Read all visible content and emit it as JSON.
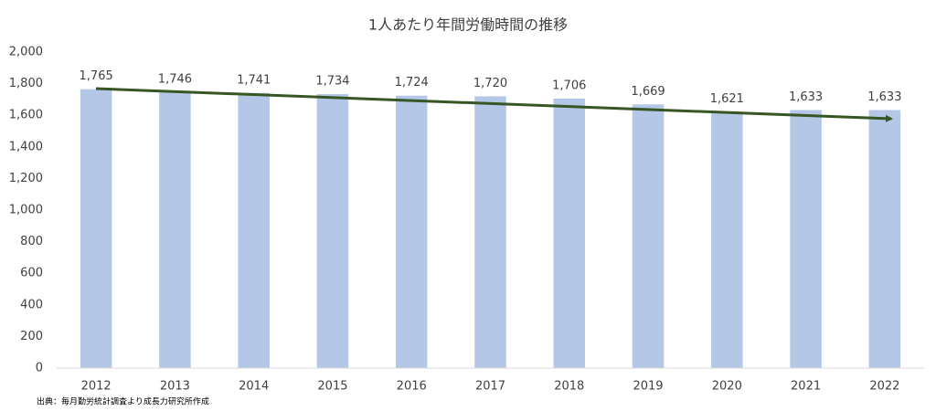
{
  "chart_data": {
    "type": "bar",
    "title": "1人あたり年間労働時間の推移",
    "categories": [
      "2012",
      "2013",
      "2014",
      "2015",
      "2016",
      "2017",
      "2018",
      "2019",
      "2020",
      "2021",
      "2022"
    ],
    "values": [
      1765,
      1746,
      1741,
      1734,
      1724,
      1720,
      1706,
      1669,
      1621,
      1633,
      1633
    ],
    "value_labels": [
      "1,765",
      "1,746",
      "1,741",
      "1,734",
      "1,724",
      "1,720",
      "1,706",
      "1,669",
      "1,621",
      "1,633",
      "1,633"
    ],
    "color": "#b4c7e7",
    "ylim": [
      0,
      2000
    ],
    "yticks": [
      0,
      200,
      400,
      600,
      800,
      {
        "value": 1000,
        "label": "1,000"
      },
      {
        "value": 1200,
        "label": "1,200"
      },
      {
        "value": 1400,
        "label": "1,400"
      },
      {
        "value": 1600,
        "label": "1,600"
      },
      {
        "value": 1800,
        "label": "1,800"
      },
      {
        "value": 2000,
        "label": "2,000"
      }
    ],
    "grid": false,
    "source": "出典：毎月勤労統計調査より成長力研究所作成"
  }
}
